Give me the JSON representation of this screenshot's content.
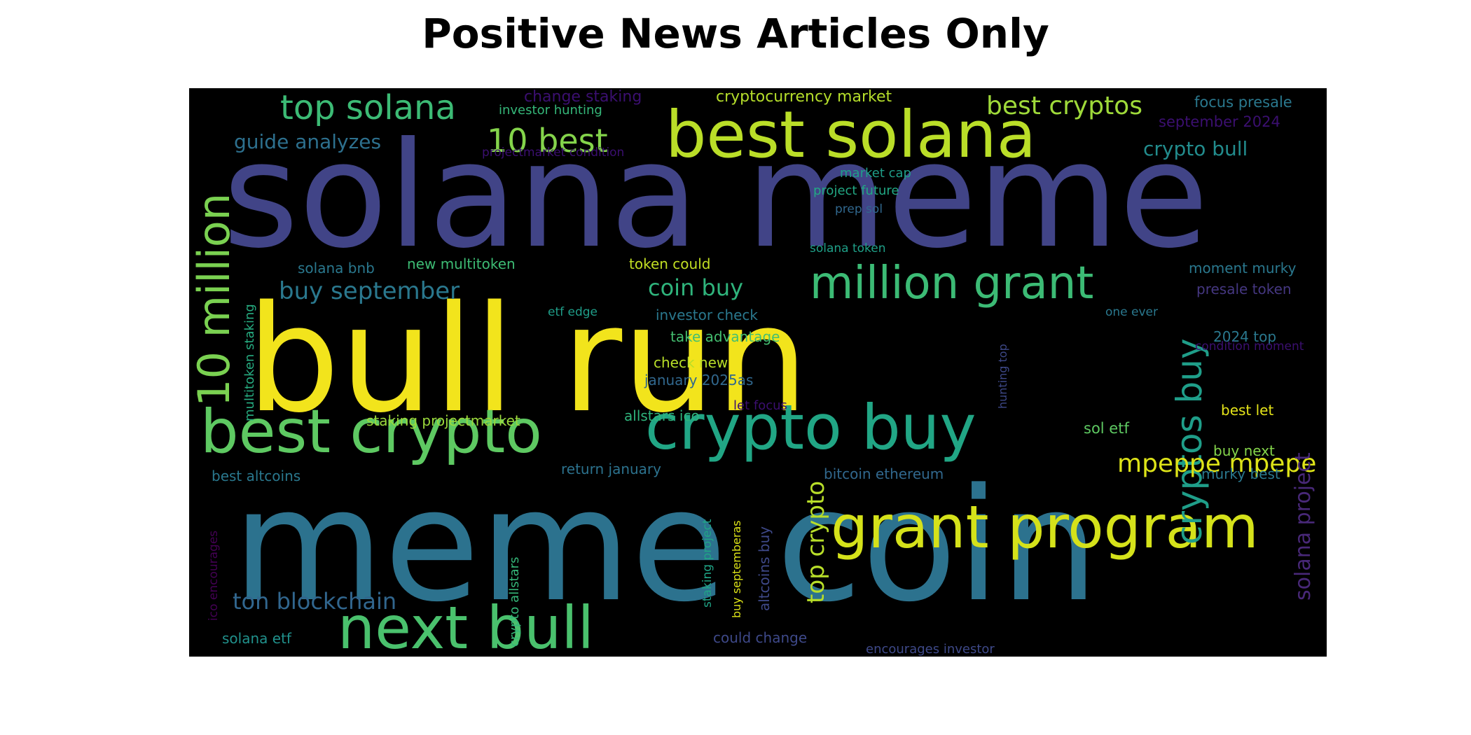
{
  "title": "Positive News Articles Only",
  "chart_data": {
    "type": "wordcloud",
    "title": "Positive News Articles Only",
    "background_color": "#000000",
    "colormap": "viridis",
    "words": [
      {
        "text": "solana meme",
        "weight": 1.0,
        "color": "#414487",
        "orientation": "horizontal"
      },
      {
        "text": "bull run",
        "weight": 0.96,
        "color": "#f2e41c",
        "orientation": "horizontal"
      },
      {
        "text": "meme coin",
        "weight": 0.93,
        "color": "#2c728e",
        "orientation": "horizontal"
      },
      {
        "text": "best solana",
        "weight": 0.5,
        "color": "#bade28",
        "orientation": "horizontal"
      },
      {
        "text": "crypto buy",
        "weight": 0.46,
        "color": "#21a685",
        "orientation": "horizontal"
      },
      {
        "text": "best crypto",
        "weight": 0.46,
        "color": "#5ec962",
        "orientation": "horizontal"
      },
      {
        "text": "grant program",
        "weight": 0.44,
        "color": "#d5e21a",
        "orientation": "horizontal"
      },
      {
        "text": "next bull",
        "weight": 0.44,
        "color": "#4ac16d",
        "orientation": "horizontal"
      },
      {
        "text": "million grant",
        "weight": 0.36,
        "color": "#3cbb75",
        "orientation": "horizontal"
      },
      {
        "text": "10 million",
        "weight": 0.36,
        "color": "#7ad151",
        "orientation": "vertical"
      },
      {
        "text": "cryptos buy",
        "weight": 0.28,
        "color": "#1f9e89",
        "orientation": "vertical"
      },
      {
        "text": "top solana",
        "weight": 0.25,
        "color": "#3cbb75",
        "orientation": "horizontal"
      },
      {
        "text": "10 best",
        "weight": 0.25,
        "color": "#84d44b",
        "orientation": "horizontal"
      },
      {
        "text": "top crypto",
        "weight": 0.19,
        "color": "#b8de29",
        "orientation": "vertical"
      },
      {
        "text": "mpeppe mpepe",
        "weight": 0.19,
        "color": "#dde318",
        "orientation": "horizontal"
      },
      {
        "text": "best cryptos",
        "weight": 0.19,
        "color": "#9fda3a",
        "orientation": "horizontal"
      },
      {
        "text": "solana project",
        "weight": 0.17,
        "color": "#482878",
        "orientation": "vertical"
      },
      {
        "text": "buy september",
        "weight": 0.18,
        "color": "#2a788e",
        "orientation": "horizontal"
      },
      {
        "text": "coin buy",
        "weight": 0.18,
        "color": "#2fb47c",
        "orientation": "horizontal"
      },
      {
        "text": "ton blockchain",
        "weight": 0.17,
        "color": "#31668e",
        "orientation": "horizontal"
      },
      {
        "text": "guide analyzes",
        "weight": 0.15,
        "color": "#2d708e",
        "orientation": "horizontal"
      },
      {
        "text": "crypto bull",
        "weight": 0.15,
        "color": "#228c8d",
        "orientation": "horizontal"
      },
      {
        "text": "cryptocurrency market",
        "weight": 0.11,
        "color": "#b5de2b",
        "orientation": "horizontal"
      },
      {
        "text": "change staking",
        "weight": 0.1,
        "color": "#3b0f70",
        "orientation": "horizontal"
      },
      {
        "text": "investor hunting",
        "weight": 0.08,
        "color": "#35b779",
        "orientation": "horizontal"
      },
      {
        "text": "focus presale",
        "weight": 0.09,
        "color": "#2a788e",
        "orientation": "horizontal"
      },
      {
        "text": "september 2024",
        "weight": 0.09,
        "color": "#3b0f70",
        "orientation": "horizontal"
      },
      {
        "text": "projectmarket condition",
        "weight": 0.08,
        "color": "#3b0f70",
        "orientation": "horizontal"
      },
      {
        "text": "market cap",
        "weight": 0.08,
        "color": "#1f9e89",
        "orientation": "horizontal"
      },
      {
        "text": "project future",
        "weight": 0.08,
        "color": "#22a884",
        "orientation": "horizontal"
      },
      {
        "text": "prep sol",
        "weight": 0.07,
        "color": "#31688e",
        "orientation": "horizontal"
      },
      {
        "text": "solana token",
        "weight": 0.07,
        "color": "#1fa088",
        "orientation": "horizontal"
      },
      {
        "text": "solana bnb",
        "weight": 0.09,
        "color": "#2a788e",
        "orientation": "horizontal"
      },
      {
        "text": "new multitoken",
        "weight": 0.09,
        "color": "#3dbc74",
        "orientation": "horizontal"
      },
      {
        "text": "token could",
        "weight": 0.09,
        "color": "#c2df23",
        "orientation": "horizontal"
      },
      {
        "text": "moment murky",
        "weight": 0.09,
        "color": "#2a788e",
        "orientation": "horizontal"
      },
      {
        "text": "presale token",
        "weight": 0.09,
        "color": "#453781",
        "orientation": "horizontal"
      },
      {
        "text": "multitoken staking",
        "weight": 0.08,
        "color": "#27ad81",
        "orientation": "vertical"
      },
      {
        "text": "etf edge",
        "weight": 0.08,
        "color": "#1f9e89",
        "orientation": "horizontal"
      },
      {
        "text": "investor check",
        "weight": 0.09,
        "color": "#2a788e",
        "orientation": "horizontal"
      },
      {
        "text": "one ever",
        "weight": 0.07,
        "color": "#2a788e",
        "orientation": "horizontal"
      },
      {
        "text": "2024 top",
        "weight": 0.09,
        "color": "#2a788e",
        "orientation": "horizontal"
      },
      {
        "text": "take advantage",
        "weight": 0.09,
        "color": "#44bf70",
        "orientation": "horizontal"
      },
      {
        "text": "hunting top",
        "weight": 0.07,
        "color": "#3e4989",
        "orientation": "vertical"
      },
      {
        "text": "condition moment",
        "weight": 0.07,
        "color": "#3b0f70",
        "orientation": "horizontal"
      },
      {
        "text": "check new",
        "weight": 0.09,
        "color": "#b8de29",
        "orientation": "horizontal"
      },
      {
        "text": "january 2025as",
        "weight": 0.09,
        "color": "#31688e",
        "orientation": "horizontal"
      },
      {
        "text": "let focus",
        "weight": 0.08,
        "color": "#3b0f70",
        "orientation": "horizontal"
      },
      {
        "text": "best let",
        "weight": 0.09,
        "color": "#e5e419",
        "orientation": "horizontal"
      },
      {
        "text": "staking projectmarket",
        "weight": 0.09,
        "color": "#9bd93c",
        "orientation": "horizontal"
      },
      {
        "text": "allstars ico",
        "weight": 0.09,
        "color": "#2fb47c",
        "orientation": "horizontal"
      },
      {
        "text": "sol etf",
        "weight": 0.1,
        "color": "#5ec962",
        "orientation": "horizontal"
      },
      {
        "text": "buy next",
        "weight": 0.1,
        "color": "#84d44b",
        "orientation": "horizontal"
      },
      {
        "text": "best altcoins",
        "weight": 0.09,
        "color": "#2a788e",
        "orientation": "horizontal"
      },
      {
        "text": "return january",
        "weight": 0.09,
        "color": "#2c728e",
        "orientation": "horizontal"
      },
      {
        "text": "bitcoin ethereum",
        "weight": 0.09,
        "color": "#31688e",
        "orientation": "horizontal"
      },
      {
        "text": "murky best",
        "weight": 0.09,
        "color": "#2a788e",
        "orientation": "horizontal"
      },
      {
        "text": "ico encourages",
        "weight": 0.08,
        "color": "#440154",
        "orientation": "vertical"
      },
      {
        "text": "crypto allstars",
        "weight": 0.08,
        "color": "#35b779",
        "orientation": "vertical"
      },
      {
        "text": "staking project",
        "weight": 0.08,
        "color": "#20a486",
        "orientation": "vertical"
      },
      {
        "text": "buy septemberas",
        "weight": 0.07,
        "color": "#dde318",
        "orientation": "vertical"
      },
      {
        "text": "altcoins buy",
        "weight": 0.09,
        "color": "#3e4989",
        "orientation": "vertical"
      },
      {
        "text": "solana etf",
        "weight": 0.09,
        "color": "#21918c",
        "orientation": "horizontal"
      },
      {
        "text": "could change",
        "weight": 0.09,
        "color": "#3e4989",
        "orientation": "horizontal"
      },
      {
        "text": "encourages investor",
        "weight": 0.08,
        "color": "#3e4989",
        "orientation": "horizontal"
      }
    ]
  }
}
